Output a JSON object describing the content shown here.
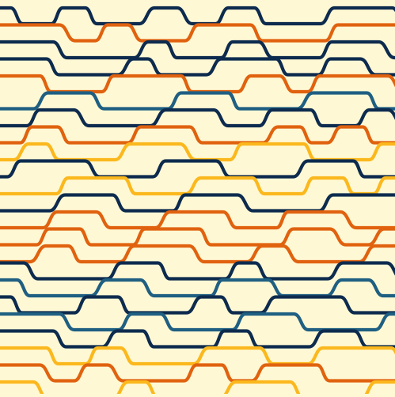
{
  "pattern": {
    "background": "#fff8d4",
    "palette": {
      "navy": "#0d2b4e",
      "blue": "#1f5f82",
      "orange": "#e0620f",
      "yellow": "#fbb81d"
    },
    "lines": [
      {
        "color": "navy"
      },
      {
        "color": "orange"
      },
      {
        "color": "navy"
      },
      {
        "color": "navy"
      },
      {
        "color": "orange"
      },
      {
        "color": "blue"
      },
      {
        "color": "navy"
      },
      {
        "color": "orange"
      },
      {
        "color": "yellow"
      },
      {
        "color": "navy"
      },
      {
        "color": "yellow"
      },
      {
        "color": "navy"
      },
      {
        "color": "orange"
      },
      {
        "color": "orange"
      },
      {
        "color": "orange"
      },
      {
        "color": "navy"
      },
      {
        "color": "blue"
      },
      {
        "color": "navy"
      },
      {
        "color": "blue"
      },
      {
        "color": "navy"
      },
      {
        "color": "yellow"
      },
      {
        "color": "orange"
      },
      {
        "color": "yellow"
      },
      {
        "color": "orange"
      }
    ]
  }
}
